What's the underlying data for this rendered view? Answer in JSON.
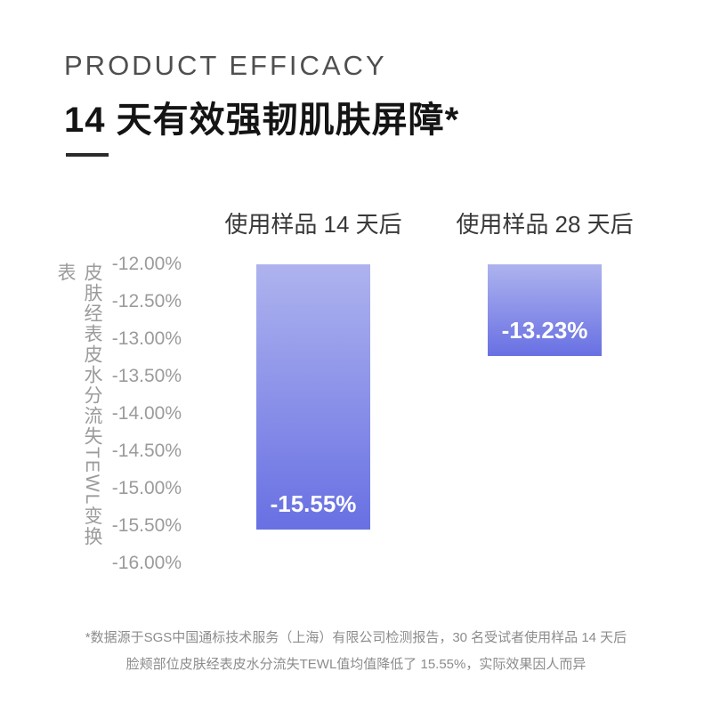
{
  "header": {
    "eyebrow": "PRODUCT EFFICACY",
    "title": "14 天有效强韧肌肤屏障*"
  },
  "chart_data": {
    "type": "bar",
    "title": "14 天有效强韧肌肤屏障*",
    "categories": [
      "使用样品 14 天后",
      "使用样品 28 天后"
    ],
    "values": [
      -15.55,
      -13.23
    ],
    "value_labels": [
      "-15.55%",
      "-13.23%"
    ],
    "xlabel": "",
    "ylabel": "皮肤经表皮水分流失TEWL变换表",
    "ylim": [
      -16.0,
      -12.0
    ],
    "yticks": [
      "-12.00%",
      "-12.50%",
      "-13.00%",
      "-13.50%",
      "-14.00%",
      "-14.50%",
      "-15.00%",
      "-15.50%",
      "-16.00%"
    ],
    "grid": false,
    "legend": false,
    "bar_color_top": "#aeb3ee",
    "bar_color_bottom": "#6870e3"
  },
  "footnote": {
    "line1": "*数据源于SGS中国通标技术服务（上海）有限公司检测报告，30 名受试者使用样品 14 天后",
    "line2": "脸颊部位皮肤经表皮水分流失TEWL值均值降低了 15.55%，实际效果因人而异"
  }
}
